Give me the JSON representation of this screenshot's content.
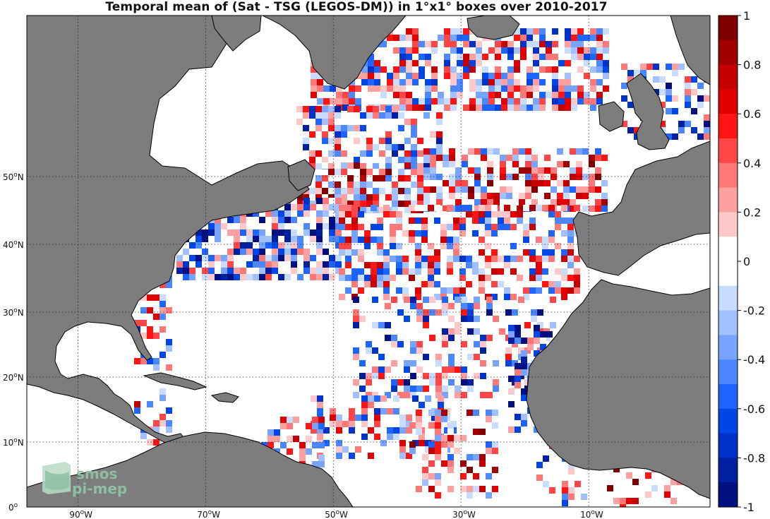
{
  "title": "Temporal mean of (Sat - TSG (LEGOS-DM)) in 1°x1° boxes over 2010-2017",
  "map": {
    "x_ticks": [
      {
        "lon": -90,
        "label": "90",
        "hemi": "W"
      },
      {
        "lon": -70,
        "label": "70",
        "hemi": "W"
      },
      {
        "lon": -50,
        "label": "50",
        "hemi": "W"
      },
      {
        "lon": -30,
        "label": "30",
        "hemi": "W"
      },
      {
        "lon": -10,
        "label": "10",
        "hemi": "W"
      }
    ],
    "y_ticks": [
      {
        "lat": 0,
        "label": "0",
        "hemi": ""
      },
      {
        "lat": 10,
        "label": "10",
        "hemi": "N"
      },
      {
        "lat": 20,
        "label": "20",
        "hemi": "N"
      },
      {
        "lat": 30,
        "label": "30",
        "hemi": "N"
      },
      {
        "lat": 40,
        "label": "40",
        "hemi": "N"
      },
      {
        "lat": 50,
        "label": "50",
        "hemi": "N"
      }
    ],
    "land_color": "#7d7d7d",
    "ocean_color": "#ffffff"
  },
  "colorbar": {
    "ticks": [
      "1",
      "0.8",
      "0.6",
      "0.4",
      "0.2",
      "0",
      "-0.2",
      "-0.4",
      "-0.6",
      "-0.8",
      "-1"
    ],
    "colors": [
      "#7f0000",
      "#a00000",
      "#c40000",
      "#e00000",
      "#ff1414",
      "#ff4646",
      "#ff7878",
      "#ffa0a0",
      "#ffc8c8",
      "#ffffff",
      "#ffffff",
      "#c8dcff",
      "#a0c0ff",
      "#78a4ff",
      "#4b87ff",
      "#1e64ff",
      "#0046e6",
      "#0032c8",
      "#0020a0",
      "#001080"
    ]
  },
  "logo": {
    "line1": "smos",
    "line2": "pi-mep"
  }
}
